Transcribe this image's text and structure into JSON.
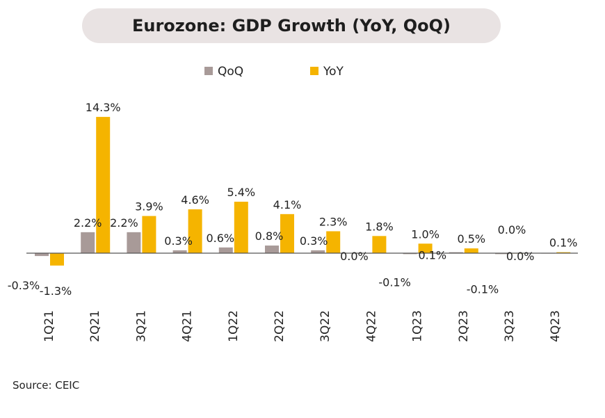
{
  "source": "Source: CEIC",
  "chart_data": {
    "type": "bar",
    "title": "Eurozone: GDP Growth (YoY, QoQ)",
    "categories": [
      "1Q21",
      "2Q21",
      "3Q21",
      "4Q21",
      "1Q22",
      "2Q22",
      "3Q22",
      "4Q22",
      "1Q23",
      "2Q23",
      "3Q23",
      "4Q23"
    ],
    "series": [
      {
        "name": "QoQ",
        "color": "#a89a98",
        "values": [
          -0.3,
          2.2,
          2.2,
          0.3,
          0.6,
          0.8,
          0.3,
          0.0,
          -0.1,
          0.1,
          -0.1,
          0.0
        ],
        "labels": [
          "-0.3%",
          "2.2%",
          "2.2%",
          "0.3%",
          "0.6%",
          "0.8%",
          "0.3%",
          "0.0%",
          "-0.1%",
          "0.1%",
          "-0.1%",
          "0.0%"
        ]
      },
      {
        "name": "YoY",
        "color": "#f5b400",
        "values": [
          -1.3,
          14.3,
          3.9,
          4.6,
          5.4,
          4.1,
          2.3,
          1.8,
          1.0,
          0.5,
          0.0,
          0.1
        ],
        "labels": [
          "-1.3%",
          "14.3%",
          "3.9%",
          "4.6%",
          "5.4%",
          "4.1%",
          "2.3%",
          "1.8%",
          "1.0%",
          "0.5%",
          "0.0%",
          "0.1%"
        ]
      }
    ],
    "legend_position": "top-center",
    "grid": false
  }
}
